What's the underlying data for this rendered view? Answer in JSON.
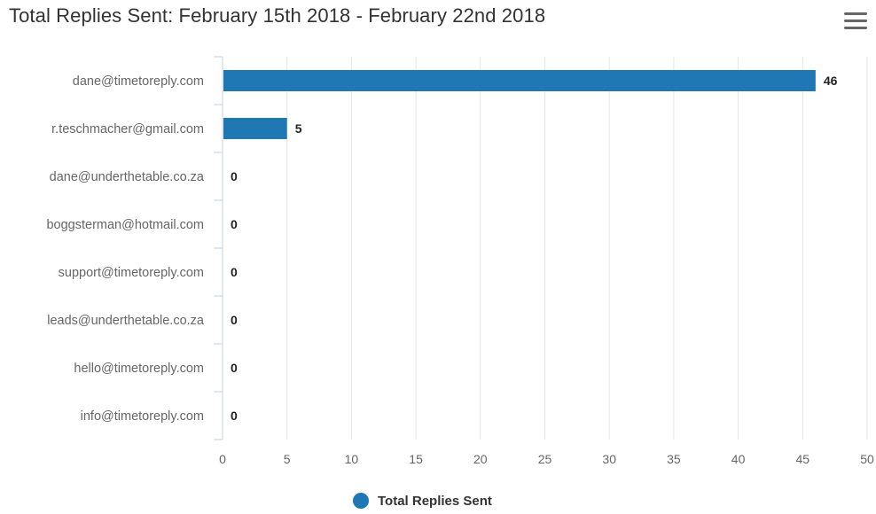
{
  "title": "Total Replies Sent: February 15th 2018 - February 22nd 2018",
  "menu_icon": "hamburger-menu-icon",
  "colors": {
    "bar": "#1f77b4",
    "grid": "#e6e6e6",
    "axis": "#c0d0e0",
    "text": "#666666",
    "value": "#222222"
  },
  "chart_data": {
    "type": "bar",
    "orientation": "horizontal",
    "title": "Total Replies Sent: February 15th 2018 - February 22nd 2018",
    "categories": [
      "dane@timetoreply.com",
      "r.teschmacher@gmail.com",
      "dane@underthetable.co.za",
      "boggsterman@hotmail.com",
      "support@timetoreply.com",
      "leads@underthetable.co.za",
      "hello@timetoreply.com",
      "info@timetoreply.com"
    ],
    "series": [
      {
        "name": "Total Replies Sent",
        "values": [
          46,
          5,
          0,
          0,
          0,
          0,
          0,
          0
        ]
      }
    ],
    "xlim": [
      0,
      50
    ],
    "xticks": [
      0,
      5,
      10,
      15,
      20,
      25,
      30,
      35,
      40,
      45,
      50
    ],
    "grid": true,
    "data_labels": true,
    "legend_position": "bottom-center"
  }
}
